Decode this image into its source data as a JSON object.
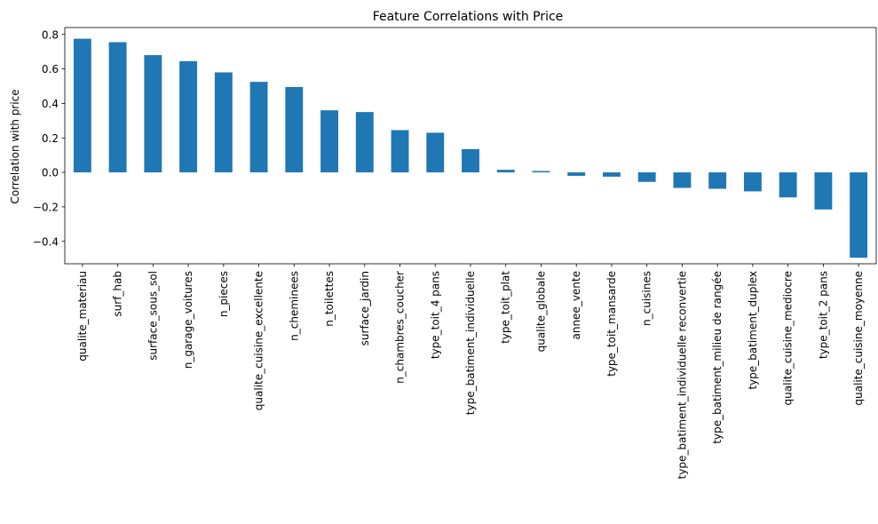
{
  "chart_data": {
    "type": "bar",
    "title": "Feature Correlations with Price",
    "xlabel": "",
    "ylabel": "Correlation with price",
    "ylim": [
      -0.53,
      0.84
    ],
    "yticks": [
      -0.4,
      -0.2,
      0.0,
      0.2,
      0.4,
      0.6,
      0.8
    ],
    "ytick_labels": [
      "−0.4",
      "−0.2",
      "0.0",
      "0.2",
      "0.4",
      "0.6",
      "0.8"
    ],
    "grid": false,
    "legend": "none",
    "bar_color": "#1f77b4",
    "categories": [
      "qualite_materiau",
      "surf_hab",
      "surface_sous_sol",
      "n_garage_voitures",
      "n_pieces",
      "qualite_cuisine_excellente",
      "n_cheminees",
      "n_toilettes",
      "surface_jardin",
      "n_chambres_coucher",
      "type_toit_4 pans",
      "type_batiment_individuelle",
      "type_toit_plat",
      "qualite_globale",
      "annee_vente",
      "type_toit_mansarde",
      "n_cuisines",
      "type_batiment_individuelle reconvertie",
      "type_batiment_milieu de rangée",
      "type_batiment_duplex",
      "qualite_cuisine_mediocre",
      "type_toit_2 pans",
      "qualite_cuisine_moyenne"
    ],
    "values": [
      0.775,
      0.755,
      0.68,
      0.645,
      0.58,
      0.525,
      0.495,
      0.36,
      0.35,
      0.245,
      0.23,
      0.135,
      0.015,
      0.008,
      -0.02,
      -0.025,
      -0.055,
      -0.09,
      -0.095,
      -0.11,
      -0.145,
      -0.215,
      -0.495
    ]
  }
}
